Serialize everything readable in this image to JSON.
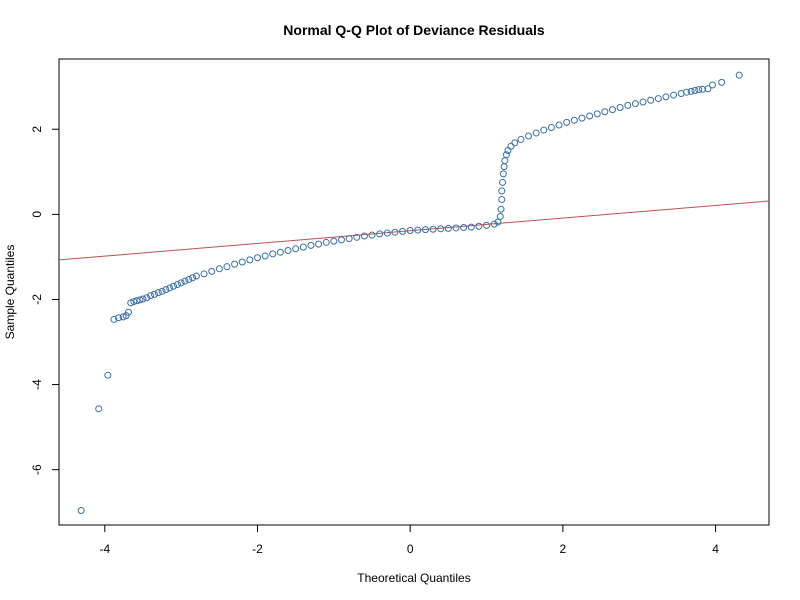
{
  "chart_data": {
    "type": "scatter",
    "title": "Normal Q-Q Plot of Deviance Residuals",
    "xlabel": "Theoretical Quantiles",
    "ylabel": "Sample Quantiles",
    "xlim": [
      -4.6,
      4.7
    ],
    "ylim": [
      -7.3,
      3.65
    ],
    "x_ticks": [
      -4,
      -2,
      0,
      2,
      4
    ],
    "x_tick_labels": [
      "-4",
      "-2",
      "0",
      "2",
      "4"
    ],
    "y_ticks": [
      -6,
      -4,
      -2,
      0,
      2
    ],
    "y_tick_labels": [
      "-6",
      "-4",
      "-2",
      "0",
      "2"
    ],
    "grid": false,
    "point_color": "#3a6ea5",
    "line_color": "#c0504d",
    "reference_line": {
      "slope": 0.149,
      "intercept": -0.386
    },
    "points": [
      [
        -4.31,
        -6.96
      ],
      [
        -4.08,
        -4.57
      ],
      [
        -3.96,
        -3.78
      ],
      [
        -3.88,
        -2.47
      ],
      [
        -3.82,
        -2.43
      ],
      [
        -3.76,
        -2.41
      ],
      [
        -3.72,
        -2.38
      ],
      [
        -3.69,
        -2.3
      ],
      [
        -3.66,
        -2.08
      ],
      [
        -3.62,
        -2.05
      ],
      [
        -3.58,
        -2.03
      ],
      [
        -3.54,
        -2.01
      ],
      [
        -3.5,
        -1.99
      ],
      [
        -3.45,
        -1.96
      ],
      [
        -3.4,
        -1.91
      ],
      [
        -3.35,
        -1.88
      ],
      [
        -3.3,
        -1.84
      ],
      [
        -3.25,
        -1.81
      ],
      [
        -3.2,
        -1.77
      ],
      [
        -3.15,
        -1.73
      ],
      [
        -3.1,
        -1.69
      ],
      [
        -3.05,
        -1.65
      ],
      [
        -3.0,
        -1.61
      ],
      [
        -2.95,
        -1.57
      ],
      [
        -2.9,
        -1.53
      ],
      [
        -2.85,
        -1.49
      ],
      [
        -2.8,
        -1.45
      ],
      [
        -2.7,
        -1.4
      ],
      [
        -2.6,
        -1.34
      ],
      [
        -2.5,
        -1.28
      ],
      [
        -2.4,
        -1.23
      ],
      [
        -2.3,
        -1.17
      ],
      [
        -2.2,
        -1.12
      ],
      [
        -2.1,
        -1.07
      ],
      [
        -2.0,
        -1.02
      ],
      [
        -1.9,
        -0.98
      ],
      [
        -1.8,
        -0.93
      ],
      [
        -1.7,
        -0.89
      ],
      [
        -1.6,
        -0.85
      ],
      [
        -1.5,
        -0.81
      ],
      [
        -1.4,
        -0.77
      ],
      [
        -1.3,
        -0.73
      ],
      [
        -1.2,
        -0.7
      ],
      [
        -1.1,
        -0.66
      ],
      [
        -1.0,
        -0.63
      ],
      [
        -0.9,
        -0.6
      ],
      [
        -0.8,
        -0.57
      ],
      [
        -0.7,
        -0.54
      ],
      [
        -0.6,
        -0.51
      ],
      [
        -0.5,
        -0.49
      ],
      [
        -0.4,
        -0.46
      ],
      [
        -0.3,
        -0.44
      ],
      [
        -0.2,
        -0.42
      ],
      [
        -0.1,
        -0.4
      ],
      [
        0.0,
        -0.38
      ],
      [
        0.1,
        -0.37
      ],
      [
        0.2,
        -0.36
      ],
      [
        0.3,
        -0.35
      ],
      [
        0.4,
        -0.34
      ],
      [
        0.5,
        -0.33
      ],
      [
        0.6,
        -0.32
      ],
      [
        0.7,
        -0.31
      ],
      [
        0.8,
        -0.3
      ],
      [
        0.9,
        -0.28
      ],
      [
        1.0,
        -0.26
      ],
      [
        1.1,
        -0.23
      ],
      [
        1.15,
        -0.18
      ],
      [
        1.18,
        -0.05
      ],
      [
        1.19,
        0.12
      ],
      [
        1.2,
        0.35
      ],
      [
        1.2,
        0.55
      ],
      [
        1.21,
        0.75
      ],
      [
        1.22,
        0.95
      ],
      [
        1.23,
        1.12
      ],
      [
        1.24,
        1.26
      ],
      [
        1.26,
        1.4
      ],
      [
        1.28,
        1.5
      ],
      [
        1.32,
        1.6
      ],
      [
        1.37,
        1.68
      ],
      [
        1.45,
        1.76
      ],
      [
        1.55,
        1.84
      ],
      [
        1.65,
        1.91
      ],
      [
        1.75,
        1.98
      ],
      [
        1.85,
        2.04
      ],
      [
        1.95,
        2.1
      ],
      [
        2.05,
        2.16
      ],
      [
        2.15,
        2.21
      ],
      [
        2.25,
        2.26
      ],
      [
        2.35,
        2.31
      ],
      [
        2.45,
        2.36
      ],
      [
        2.55,
        2.41
      ],
      [
        2.65,
        2.46
      ],
      [
        2.75,
        2.51
      ],
      [
        2.85,
        2.56
      ],
      [
        2.95,
        2.6
      ],
      [
        3.05,
        2.64
      ],
      [
        3.15,
        2.68
      ],
      [
        3.25,
        2.72
      ],
      [
        3.35,
        2.76
      ],
      [
        3.45,
        2.8
      ],
      [
        3.55,
        2.84
      ],
      [
        3.62,
        2.87
      ],
      [
        3.68,
        2.89
      ],
      [
        3.73,
        2.91
      ],
      [
        3.78,
        2.93
      ],
      [
        3.83,
        2.94
      ],
      [
        3.9,
        2.95
      ],
      [
        3.96,
        3.04
      ],
      [
        4.08,
        3.1
      ],
      [
        4.31,
        3.27
      ]
    ]
  }
}
